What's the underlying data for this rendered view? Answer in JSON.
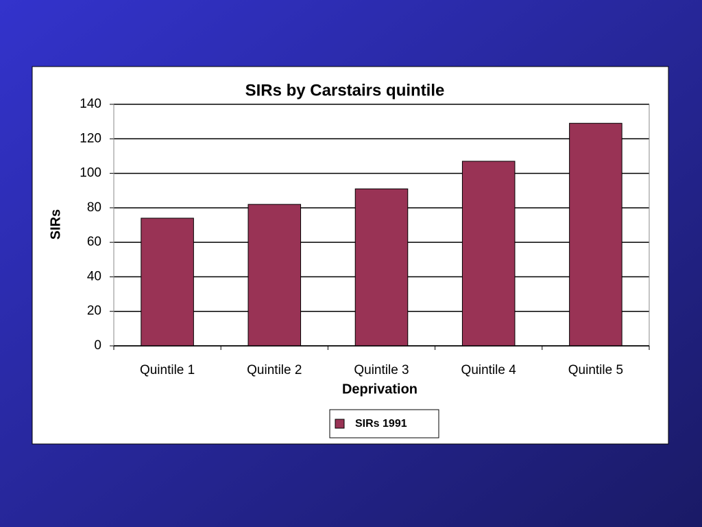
{
  "chart_data": {
    "type": "bar",
    "title": "SIRs by Carstairs quintile",
    "x_label": "Deprivation",
    "y_label": "SIRs",
    "categories": [
      "Quintile 1",
      "Quintile 2",
      "Quintile 3",
      "Quintile 4",
      "Quintile 5"
    ],
    "series": [
      {
        "name": "SIRs 1991",
        "color": "#993355",
        "values": [
          74,
          82,
          91,
          107,
          129
        ]
      }
    ],
    "ylim": [
      0,
      140
    ],
    "yticks": [
      0,
      20,
      40,
      60,
      80,
      100,
      120,
      140
    ],
    "grid": true,
    "legend": "bottom"
  }
}
